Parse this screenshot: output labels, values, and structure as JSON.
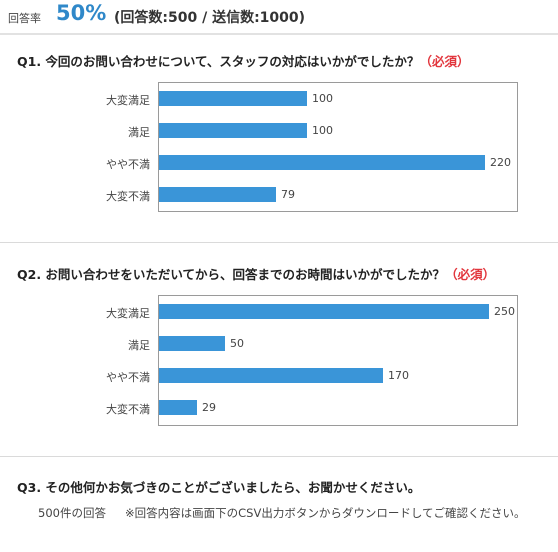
{
  "header": {
    "label": "回答率",
    "rate": "50%",
    "counts": "(回答数:500 / 送信数:1000)"
  },
  "q1": {
    "title": "Q1. 今回のお問い合わせについて、スタッフの対応はいかがでしたか？",
    "required": "（必須）"
  },
  "q2": {
    "title": "Q2. お問い合わせをいただいてから、回答までのお時間はいかがでしたか？",
    "required": "（必須）"
  },
  "q3": {
    "title": "Q3. その他何かお気づきのことがございましたら、お聞かせください。",
    "count_text": "500件の回答",
    "note": "※回答内容は画面下のCSV出力ボタンからダウンロードしてご確認ください。"
  },
  "colors": {
    "bar": "#3a95d8",
    "rate": "#2f88c9",
    "required": "#e2363d"
  },
  "chart_data": [
    {
      "type": "bar",
      "orientation": "horizontal",
      "categories": [
        "大変満足",
        "満足",
        "やや不満",
        "大変不満"
      ],
      "values": [
        100,
        100,
        220,
        79
      ],
      "value_labels": [
        "100",
        "100",
        "220",
        "79"
      ],
      "xlim": [
        0,
        240
      ],
      "grid": false
    },
    {
      "type": "bar",
      "orientation": "horizontal",
      "categories": [
        "大変満足",
        "満足",
        "やや不満",
        "大変不満"
      ],
      "values": [
        250,
        50,
        170,
        29
      ],
      "value_labels": [
        "250",
        "50",
        "170",
        "29"
      ],
      "xlim": [
        0,
        270
      ],
      "grid": false
    }
  ]
}
